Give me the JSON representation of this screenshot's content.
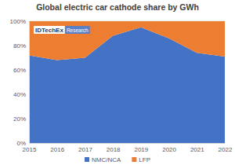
{
  "chart_data": {
    "type": "area",
    "title": "Global electric car cathode share by GWh",
    "categories": [
      "2015",
      "2016",
      "2017",
      "2018",
      "2019",
      "2020",
      "2021",
      "2022"
    ],
    "series": [
      {
        "name": "NMC/NCA",
        "color": "#4472c4",
        "values": [
          72,
          68,
          70,
          88,
          95,
          86,
          74,
          71
        ]
      },
      {
        "name": "LFP",
        "color": "#ed7d31",
        "values": [
          28,
          32,
          30,
          12,
          5,
          14,
          26,
          29
        ]
      }
    ],
    "stacked": true,
    "ylim": [
      0,
      100
    ],
    "yticks": [
      {
        "value": 0,
        "label": "0%"
      },
      {
        "value": 20,
        "label": "20%"
      },
      {
        "value": 40,
        "label": "40%"
      },
      {
        "value": 60,
        "label": "60%"
      },
      {
        "value": 80,
        "label": "80%"
      },
      {
        "value": 100,
        "label": "100%"
      }
    ],
    "grid": true,
    "legend": "bottom",
    "annotations": [
      "IDTechEx",
      "Research"
    ]
  }
}
